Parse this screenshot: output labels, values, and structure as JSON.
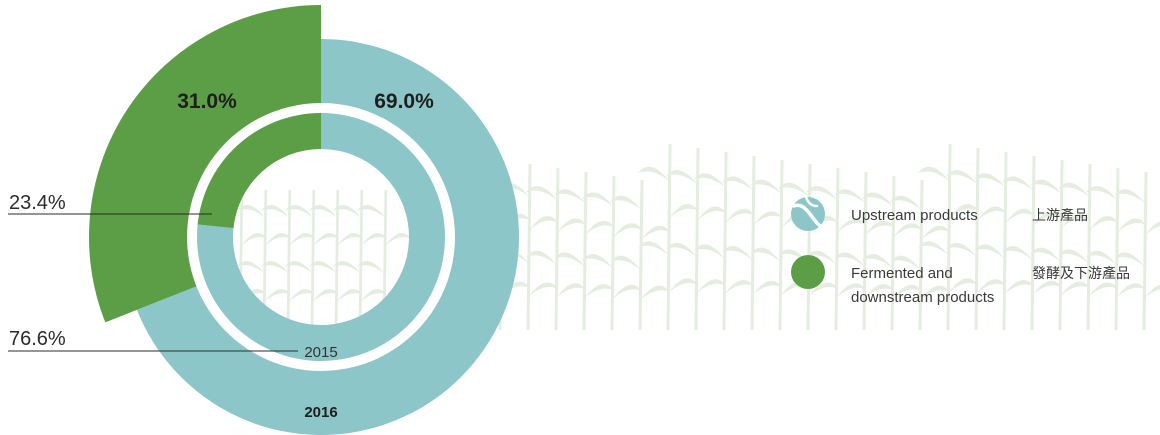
{
  "colors": {
    "upstream": "#8cc6c8",
    "fermented": "#5c9e45",
    "corn_watermark": "#e4ede0"
  },
  "chart_data": [
    {
      "type": "pie",
      "year_label": "2016",
      "ring": "outer",
      "categories": [
        "Upstream products 上游產品",
        "Fermented and downstream products 發酵及下游產品"
      ],
      "values": [
        69.0,
        31.0
      ],
      "labels": [
        "69.0%",
        "31.0%"
      ]
    },
    {
      "type": "pie",
      "year_label": "2015",
      "ring": "inner",
      "categories": [
        "Upstream products 上游產品",
        "Fermented and downstream products 發酵及下游產品"
      ],
      "values": [
        76.6,
        23.4
      ],
      "labels": [
        "76.6%",
        "23.4%"
      ]
    }
  ],
  "legend": [
    {
      "en_line1": "Upstream products",
      "en_line2": "",
      "zh": "上游產品",
      "icon": "corn-leaf-icon"
    },
    {
      "en_line1": "Fermented and",
      "en_line2": "downstream products",
      "zh": "發酵及下游產品",
      "icon": "circle-icon"
    }
  ]
}
